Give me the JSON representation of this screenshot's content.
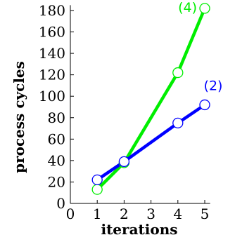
{
  "chart_data": {
    "type": "line",
    "title": "",
    "xlabel": "iterations",
    "ylabel": "process cycles",
    "x_ticks": [
      "0",
      "1",
      "2",
      "3",
      "4",
      "5"
    ],
    "y_ticks": [
      "0",
      "20",
      "40",
      "60",
      "80",
      "100",
      "120",
      "140",
      "160",
      "180"
    ],
    "xlim": [
      0,
      5.2
    ],
    "ylim": [
      0,
      185
    ],
    "grid": false,
    "legend": "none",
    "series": [
      {
        "name": "(2)",
        "color": "#0000ff",
        "x": [
          1,
          2,
          4,
          5
        ],
        "y": [
          22,
          39,
          75,
          92
        ]
      },
      {
        "name": "(4)",
        "color": "#00ee00",
        "x": [
          1,
          2,
          4,
          5
        ],
        "y": [
          13,
          38,
          122,
          182
        ]
      }
    ]
  }
}
